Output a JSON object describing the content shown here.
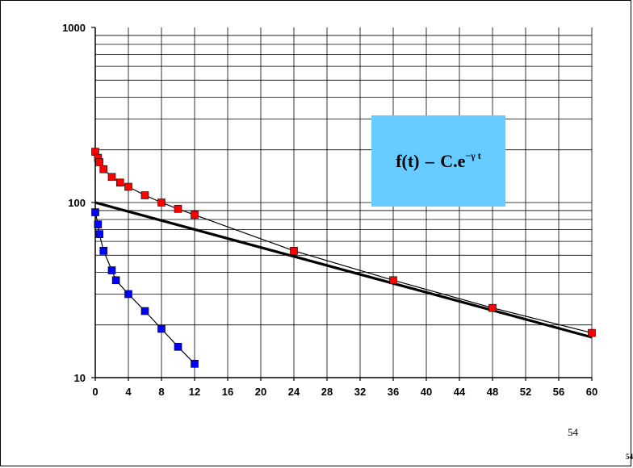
{
  "slide": {
    "formula_main": "f(t)",
    "formula_rest": "C.e",
    "formula_exponent": "−γ t",
    "page_number": "54",
    "page_number_corner": "54",
    "formula_bg_color": "#66ccff"
  },
  "chart_data": {
    "type": "scatter",
    "title": "",
    "xlabel": "",
    "ylabel": "",
    "xlim": [
      0,
      60
    ],
    "ylim": [
      10,
      1000
    ],
    "yscale": "log",
    "grid": true,
    "x_ticks": [
      0,
      4,
      8,
      12,
      16,
      20,
      24,
      28,
      32,
      36,
      40,
      44,
      48,
      52,
      56,
      60
    ],
    "y_tick_labels": [
      "10",
      "100",
      "1000"
    ],
    "series": [
      {
        "color": "#ff0000",
        "marker": "square",
        "connected": true,
        "points": [
          [
            0,
            195
          ],
          [
            0.33,
            180
          ],
          [
            0.5,
            170
          ],
          [
            1,
            155
          ],
          [
            2,
            140
          ],
          [
            3,
            130
          ],
          [
            4,
            123
          ],
          [
            6,
            110
          ],
          [
            8,
            100
          ],
          [
            10,
            92
          ],
          [
            12,
            85
          ],
          [
            24,
            53
          ],
          [
            36,
            36
          ],
          [
            48,
            25
          ],
          [
            60,
            18
          ]
        ]
      },
      {
        "color": "#0000ff",
        "marker": "square",
        "connected": true,
        "points": [
          [
            0,
            88
          ],
          [
            0.33,
            75
          ],
          [
            0.5,
            66
          ],
          [
            1,
            53
          ],
          [
            2,
            41
          ],
          [
            2.5,
            36
          ],
          [
            4,
            30
          ],
          [
            6,
            24
          ],
          [
            8,
            19
          ],
          [
            10,
            15
          ],
          [
            12,
            12
          ]
        ]
      }
    ],
    "fit_line": {
      "color": "#000000",
      "from": [
        0,
        100
      ],
      "to": [
        60,
        17
      ]
    }
  }
}
